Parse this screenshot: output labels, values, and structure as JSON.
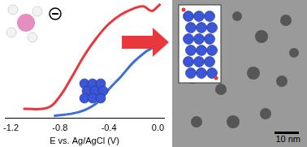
{
  "chart_data": {
    "type": "line",
    "x_label": "E vs. Ag/AgCl (V)",
    "xlim": [
      -1.25,
      0.05
    ],
    "xticks": [
      -1.2,
      -0.8,
      -0.4,
      {
        "value": 0,
        "label": "0.0"
      }
    ],
    "ylim": [
      0,
      10
    ],
    "yticks": [],
    "tick_labels": "x",
    "grid": false,
    "series": [
      {
        "color": "#e8383d",
        "x": [
          -1.1,
          -0.9,
          -0.8,
          -0.7,
          -0.6,
          -0.5,
          -0.4,
          -0.3,
          -0.2,
          -0.12,
          -0.05,
          0,
          0.02
        ],
        "values": [
          0.8,
          0.9,
          1.9,
          3.6,
          5.4,
          6.9,
          8.1,
          8.9,
          9.4,
          9.6,
          9.2,
          9.6,
          9.8
        ]
      },
      {
        "color": "#3b6fd6",
        "x": [
          -0.85,
          -0.7,
          -0.6,
          -0.5,
          -0.4,
          -0.3,
          -0.2,
          -0.1,
          -0.05,
          0,
          0.02
        ],
        "values": [
          0.2,
          0.4,
          0.7,
          1.3,
          2.5,
          3.6,
          4.8,
          5.7,
          6.0,
          6.3,
          6.5
        ]
      }
    ],
    "annotations": [
      "10 nm"
    ]
  }
}
